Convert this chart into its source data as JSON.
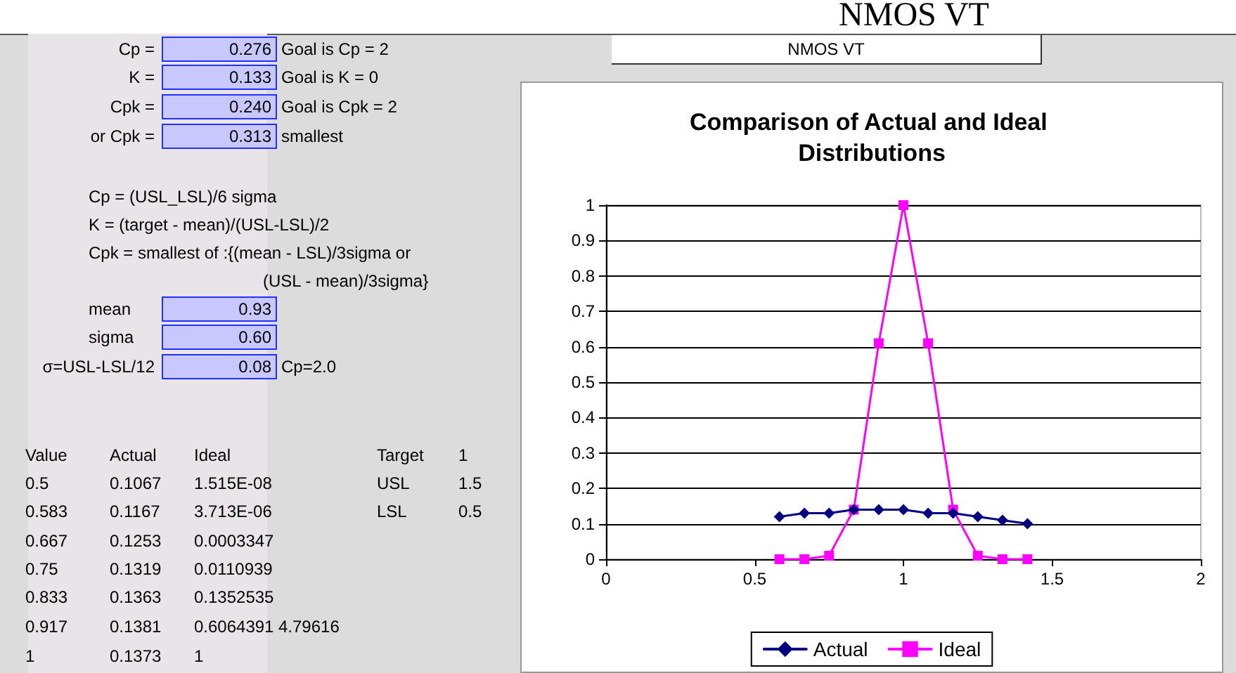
{
  "chart_data": [
    {
      "type": "other",
      "title": "NMOS VT",
      "subtitle": "NMOS VT",
      "annotations": [
        "Cp =",
        "0.276",
        "Goal is Cp = 2",
        "K =",
        "0.133",
        "Goal is K = 0",
        "Cpk =",
        "0.240",
        "Goal is Cpk = 2",
        "or Cpk =",
        "0.313",
        "smallest",
        "Cp = (USL_LSL)/6 sigma",
        "K = (target - mean)/(USL-LSL)/2",
        "Cpk = smallest of :{(mean - LSL)/3sigma or",
        "(USL - mean)/3sigma}",
        "mean",
        "0.93",
        "sigma",
        "0.60",
        "σ=USL-LSL/12",
        "0.08",
        "Cp=2.0",
        "Value\tActual\tIdeal",
        "Target",
        "1",
        "0.5\t0.1067\t1.515E-08",
        "USL",
        "1.5",
        "0.583\t0.1167\t3.713E-06",
        "LSL",
        "0.5",
        "0.667\t0.1253\t0.0003347",
        "0.75\t0.1319\t0.0110939",
        "0.833\t0.1363\t0.1352535",
        "0.917\t0.1381\t0.6064391\t4.79616",
        "1\t0.1373\t1"
      ]
    },
    {
      "type": "line",
      "title": "Comparison of Actual and Ideal Distributions",
      "x": [
        0.583,
        0.667,
        0.75,
        0.833,
        0.917,
        1,
        1.083,
        1.167,
        1.25,
        1.333,
        1.417
      ],
      "series": [
        {
          "name": "Actual",
          "color": "#000080",
          "marker": "diamond",
          "values": [
            0.12,
            0.13,
            0.13,
            0.14,
            0.14,
            0.14,
            0.13,
            0.13,
            0.12,
            0.11,
            0.1
          ]
        },
        {
          "name": "Ideal",
          "color": "#ff00ff",
          "marker": "square",
          "values": [
            0,
            0,
            0.01,
            0.14,
            0.61,
            1,
            0.61,
            0.14,
            0.01,
            0,
            0
          ]
        }
      ],
      "xlim": [
        0,
        2
      ],
      "xticks": [
        0,
        0.5,
        1,
        1.5,
        2
      ],
      "ylim": [
        0,
        1
      ],
      "yticks": [
        0,
        0.1,
        0.2,
        0.3,
        0.4,
        0.5,
        0.6,
        0.7,
        0.8,
        0.9,
        1
      ],
      "grid": "y",
      "legend": "bottom"
    }
  ]
}
